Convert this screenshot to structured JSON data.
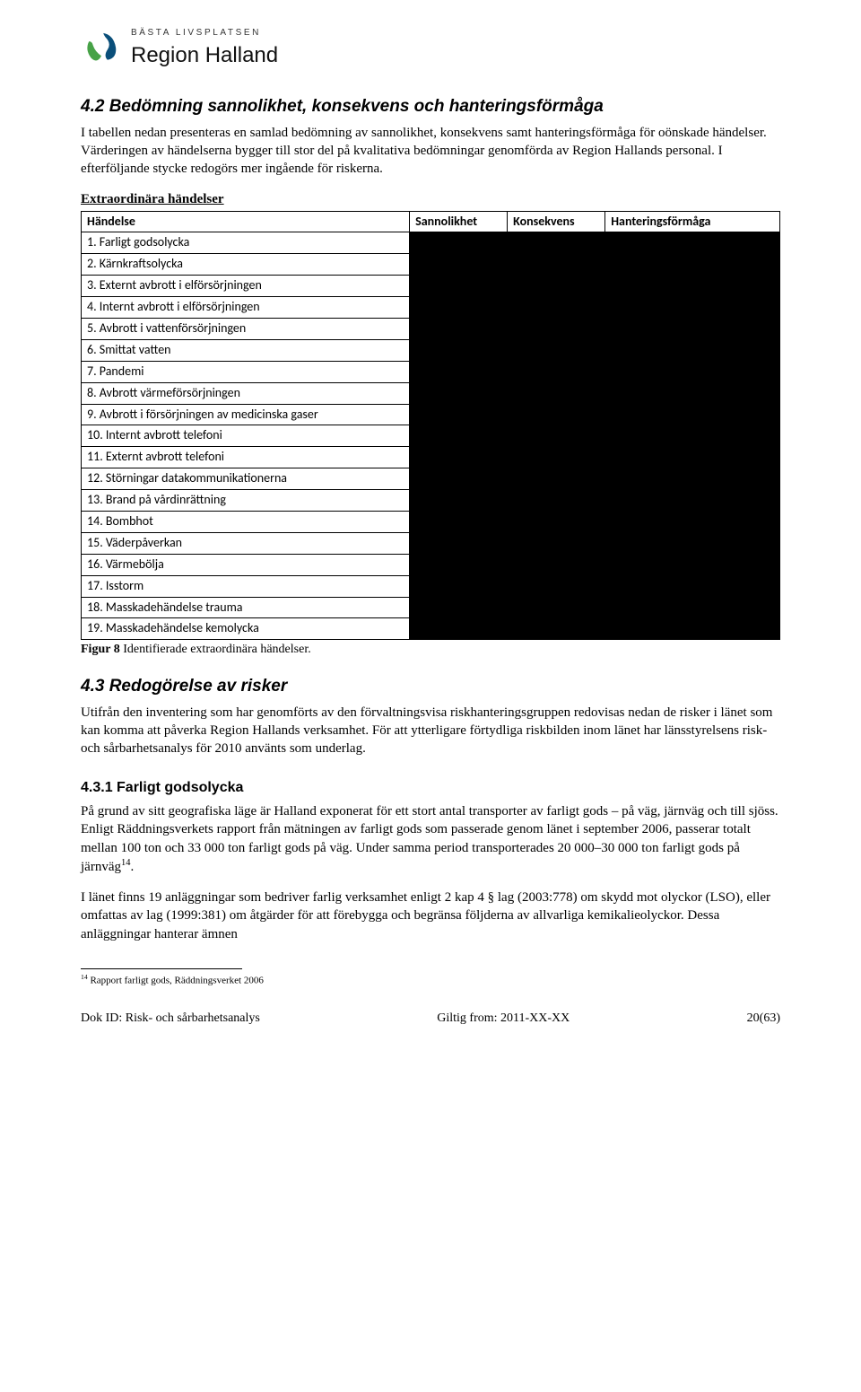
{
  "logo": {
    "tagline": "BÄSTA LIVSPLATSEN",
    "name": "Region Halland",
    "colors": {
      "green": "#47a247",
      "blue": "#0a4f7a"
    }
  },
  "section42": {
    "heading": "4.2 Bedömning sannolikhet, konsekvens och hanteringsförmåga",
    "para1": "I tabellen nedan presenteras en samlad bedömning av sannolikhet, konsekvens samt hanteringsförmåga för oönskade händelser. Värderingen av händelserna bygger till stor del på kvalitativa bedömningar genomförda av Region Hallands personal. I efterföljande stycke redogörs mer ingående för riskerna.",
    "listHead": "Extraordinära händelser"
  },
  "riskTable": {
    "columns": [
      "Händelse",
      "Sannolikhet",
      "Konsekvens",
      "Hanteringsförmåga"
    ],
    "colWidths": [
      "47%",
      "14%",
      "14%",
      "25%"
    ],
    "rows": [
      "1. Farligt godsolycka",
      "2. Kärnkraftsolycka",
      "3. Externt avbrott i elförsörjningen",
      "4. Internt avbrott i elförsörjningen",
      "5. Avbrott i vattenförsörjningen",
      "6. Smittat vatten",
      "7. Pandemi",
      "8. Avbrott värmeförsörjningen",
      "9. Avbrott i försörjningen av medicinska gaser",
      "10. Internt avbrott telefoni",
      "11. Externt avbrott telefoni",
      "12. Störningar datakommunikationerna",
      "13. Brand på vårdinrättning",
      "14. Bombhot",
      "15. Väderpåverkan",
      "16. Värmebölja",
      "17. Isstorm",
      "18. Masskadehändelse trauma",
      "19. Masskadehändelse kemolycka"
    ],
    "caption_bold": "Figur 8",
    "caption_rest": " Identifierade extraordinära händelser."
  },
  "section43": {
    "heading": "4.3 Redogörelse av risker",
    "para1": "Utifrån den inventering som har genomförts av den förvaltningsvisa riskhanteringsgruppen redovisas nedan de risker i länet som kan komma att påverka Region Hallands verksamhet. För att ytterligare förtydliga riskbilden inom länet har länsstyrelsens risk- och sårbarhetsanalys för 2010 använts som underlag."
  },
  "section431": {
    "heading": "4.3.1 Farligt godsolycka",
    "para1_pre": "På grund av sitt geografiska läge är Halland exponerat för ett stort antal transporter av farligt gods – på väg, järnväg och till sjöss. Enligt Räddningsverkets rapport från mätningen av farligt gods som passerade genom länet i september 2006, passerar totalt mellan 100 ton och 33 000 ton farligt gods på väg. Under samma period transporterades 20 000–30 000 ton farligt gods på järnväg",
    "para1_sup": "14",
    "para1_post": ".",
    "para2": "I länet finns 19 anläggningar som bedriver farlig verksamhet enligt 2 kap 4 § lag (2003:778) om skydd mot olyckor (LSO), eller omfattas av lag (1999:381) om åtgärder för att förebygga och begränsa följderna av allvarliga kemikalieolyckor. Dessa anläggningar hanterar ämnen"
  },
  "footnote": {
    "marker": "14",
    "text": " Rapport farligt gods, Räddningsverket 2006"
  },
  "footer": {
    "left": "Dok ID: Risk- och sårbarhetsanalys",
    "center": "Giltig from: 2011-XX-XX",
    "right": "20(63)"
  }
}
